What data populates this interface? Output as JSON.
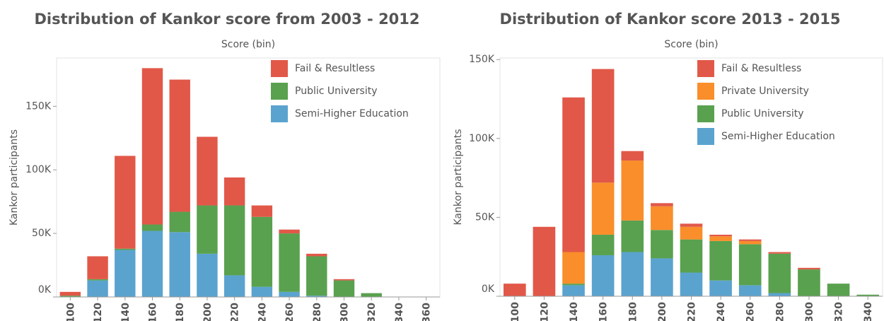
{
  "chart_data": [
    {
      "type": "stacked_bar",
      "title": "Distribution of Kankor score from 2003 - 2012",
      "x_label": "Score (bin)",
      "y_label": "Kankor participants",
      "categories": [
        "100",
        "120",
        "140",
        "160",
        "180",
        "200",
        "220",
        "240",
        "260",
        "280",
        "300",
        "320",
        "340",
        "360"
      ],
      "series": [
        {
          "name": "Semi-Higher Education",
          "color": "#5ba3cf",
          "values": [
            0,
            13000,
            37000,
            52000,
            51000,
            34000,
            17000,
            8000,
            4000,
            1000,
            0,
            0,
            0,
            0
          ]
        },
        {
          "name": "Public University",
          "color": "#59a14f",
          "values": [
            1000,
            1000,
            1000,
            5000,
            16000,
            38000,
            55000,
            55000,
            46000,
            31000,
            13000,
            3000,
            0,
            0
          ]
        },
        {
          "name": "Fail & Resultless",
          "color": "#e15848",
          "values": [
            3000,
            18000,
            73000,
            123000,
            104000,
            54000,
            22000,
            9000,
            3000,
            2000,
            1000,
            0,
            0,
            0
          ]
        }
      ],
      "ylim": [
        0,
        188000
      ],
      "yticks": [
        {
          "value": 0,
          "label": "0K"
        },
        {
          "value": 50000,
          "label": "50K"
        },
        {
          "value": 100000,
          "label": "100K"
        },
        {
          "value": 150000,
          "label": "150K"
        }
      ]
    },
    {
      "type": "stacked_bar",
      "title": "Distribution of Kankor score 2013 - 2015",
      "x_label": "Score (bin)",
      "y_label": "Kankor participants",
      "categories": [
        "100",
        "120",
        "140",
        "160",
        "180",
        "200",
        "220",
        "240",
        "260",
        "280",
        "300",
        "320",
        "340"
      ],
      "series": [
        {
          "name": "Semi-Higher Education",
          "color": "#5ba3cf",
          "values": [
            0,
            0,
            7000,
            26000,
            28000,
            24000,
            15000,
            10000,
            7000,
            2000,
            0,
            0,
            0
          ]
        },
        {
          "name": "Public University",
          "color": "#59a14f",
          "values": [
            0,
            0,
            1000,
            13000,
            20000,
            18000,
            21000,
            25000,
            26000,
            25000,
            17000,
            8000,
            1000
          ]
        },
        {
          "name": "Private University",
          "color": "#f98e2b",
          "values": [
            0,
            0,
            20000,
            33000,
            38000,
            15000,
            8000,
            3000,
            2000,
            0,
            0,
            0,
            0
          ]
        },
        {
          "name": "Fail & Resultless",
          "color": "#e15848",
          "values": [
            8000,
            44000,
            98000,
            72000,
            6000,
            2000,
            2000,
            1000,
            1000,
            1000,
            1000,
            0,
            0
          ]
        }
      ],
      "ylim": [
        0,
        151000
      ],
      "yticks": [
        {
          "value": 0,
          "label": "0K"
        },
        {
          "value": 50000,
          "label": "50K"
        },
        {
          "value": 100000,
          "label": "100K"
        },
        {
          "value": 150000,
          "label": "150K"
        }
      ]
    }
  ]
}
